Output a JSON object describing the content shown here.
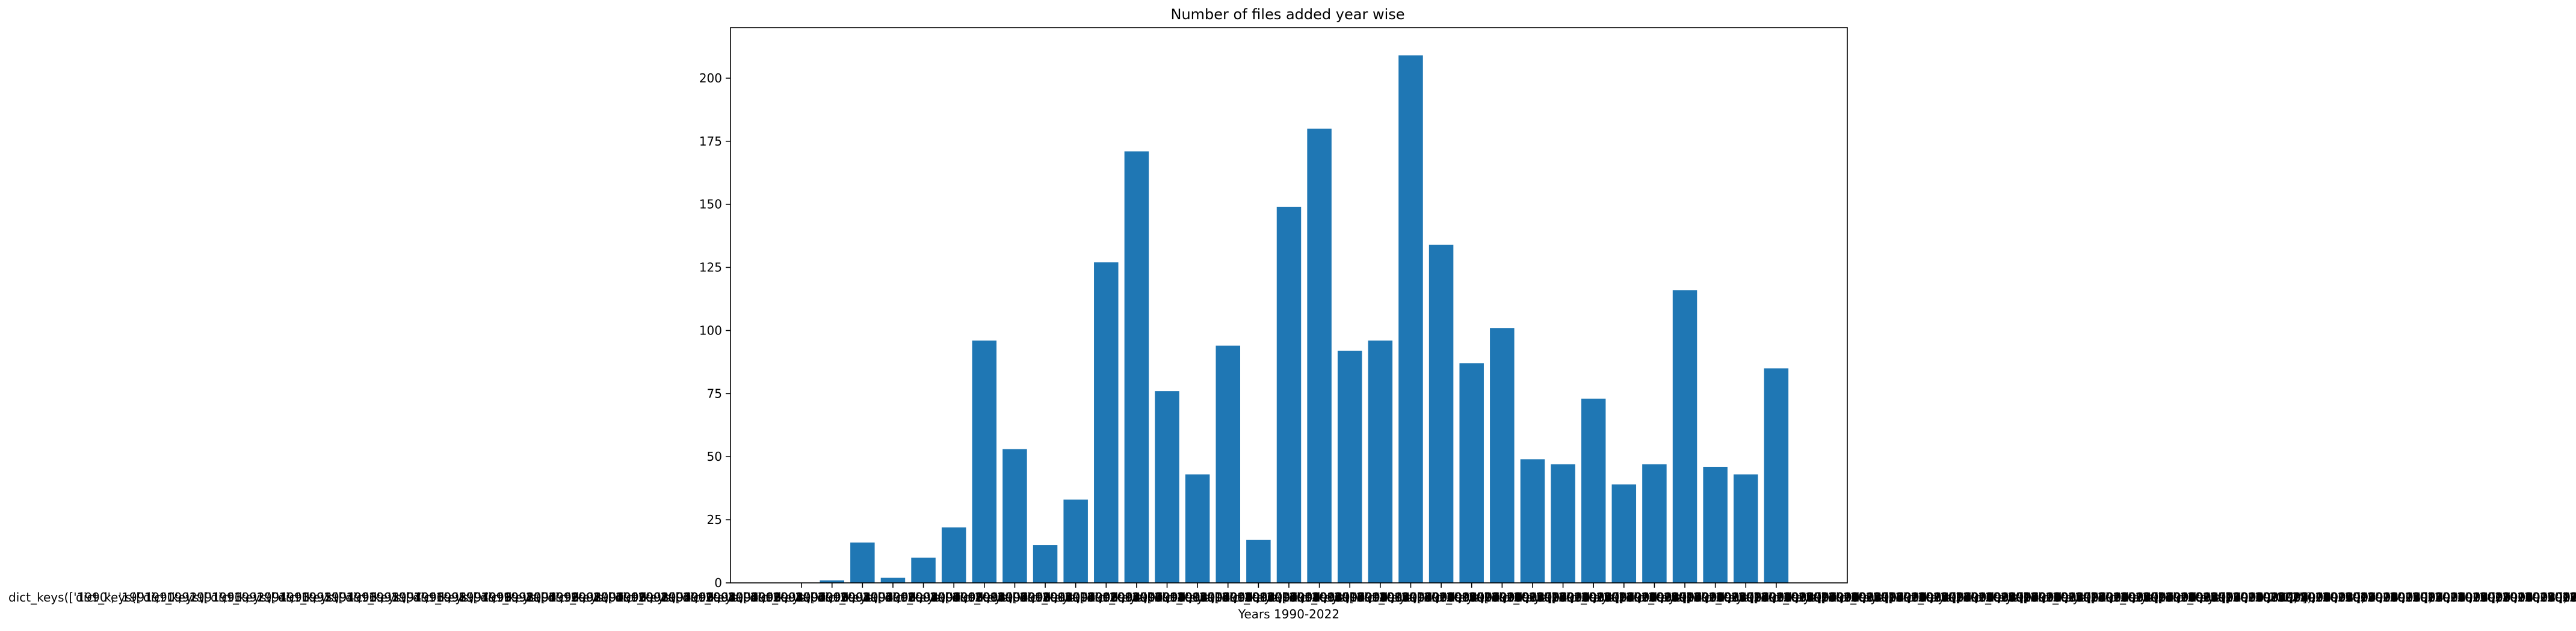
{
  "chart_data": {
    "type": "bar",
    "title": "Number of files added year wise",
    "xlabel": "Years 1990-2022",
    "ylabel": "",
    "ylim": [
      0,
      220
    ],
    "yticks": [
      0,
      25,
      50,
      75,
      100,
      125,
      150,
      175,
      200
    ],
    "color": "#1f77b4",
    "grid": false,
    "legend": false,
    "overlapping_tick_labels_left": "dict_keys(['1990', '1991', '1992', '1993', '1994', '1995', '1996', '1997', '1998', '1999', '2000', '2001', '2002', '2003', '2004', '2005', '2006', '2007', '2008', '2009', '2010', '2011', '2012', '2013', '2014', '2015', '2016', '2017', '2018', '2019', '2020', '2021', '2022'])",
    "overlapping_tick_labels_right": "2022'])",
    "categories": [
      "1990",
      "1991",
      "1992",
      "1993",
      "1994",
      "1995",
      "1996",
      "1997",
      "1998",
      "1999",
      "2000",
      "2001",
      "2002",
      "2003",
      "2004",
      "2005",
      "2006",
      "2007",
      "2008",
      "2009",
      "2010",
      "2011",
      "2012",
      "2013",
      "2014",
      "2015",
      "2016",
      "2017",
      "2018",
      "2019",
      "2020",
      "2021",
      "2022"
    ],
    "values": [
      0,
      1,
      16,
      2,
      10,
      22,
      96,
      53,
      15,
      33,
      127,
      171,
      76,
      43,
      94,
      17,
      149,
      180,
      92,
      96,
      209,
      134,
      87,
      101,
      49,
      47,
      73,
      39,
      47,
      116,
      46,
      43,
      85
    ]
  }
}
